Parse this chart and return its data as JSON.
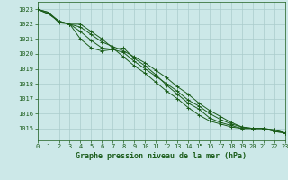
{
  "title": "Graphe pression niveau de la mer (hPa)",
  "xlim": [
    0,
    23
  ],
  "ylim": [
    1014.2,
    1023.5
  ],
  "yticks": [
    1015,
    1016,
    1017,
    1018,
    1019,
    1020,
    1021,
    1022,
    1023
  ],
  "xticks": [
    0,
    1,
    2,
    3,
    4,
    5,
    6,
    7,
    8,
    9,
    10,
    11,
    12,
    13,
    14,
    15,
    16,
    17,
    18,
    19,
    20,
    21,
    22,
    23
  ],
  "background_color": "#cce8e8",
  "grid_color": "#aacccc",
  "line_color": "#1a5c1a",
  "series": [
    [
      1023.0,
      1022.7,
      1022.2,
      1022.0,
      1021.8,
      1021.3,
      1020.8,
      1020.5,
      1020.2,
      1019.8,
      1019.4,
      1018.9,
      1018.4,
      1017.8,
      1017.3,
      1016.7,
      1016.2,
      1015.8,
      1015.4,
      1015.1,
      1015.0,
      1015.0,
      1014.8,
      1014.7
    ],
    [
      1023.0,
      1022.7,
      1022.2,
      1022.0,
      1021.5,
      1020.9,
      1020.4,
      1020.3,
      1020.1,
      1019.5,
      1019.0,
      1018.5,
      1018.0,
      1017.5,
      1016.9,
      1016.5,
      1016.0,
      1015.6,
      1015.3,
      1015.1,
      1015.0,
      1015.0,
      1014.8,
      1014.7
    ],
    [
      1023.0,
      1022.8,
      1022.2,
      1022.0,
      1021.0,
      1020.4,
      1020.2,
      1020.3,
      1020.4,
      1019.7,
      1019.2,
      1018.6,
      1017.9,
      1017.3,
      1016.7,
      1016.3,
      1015.7,
      1015.4,
      1015.2,
      1015.0,
      1015.0,
      1015.0,
      1014.9,
      1014.7
    ],
    [
      1023.0,
      1022.8,
      1022.1,
      1022.0,
      1022.0,
      1021.5,
      1021.0,
      1020.4,
      1019.8,
      1019.2,
      1018.7,
      1018.1,
      1017.5,
      1017.0,
      1016.4,
      1015.9,
      1015.5,
      1015.3,
      1015.1,
      1015.0,
      1015.0,
      1015.0,
      1014.9,
      1014.7
    ]
  ]
}
